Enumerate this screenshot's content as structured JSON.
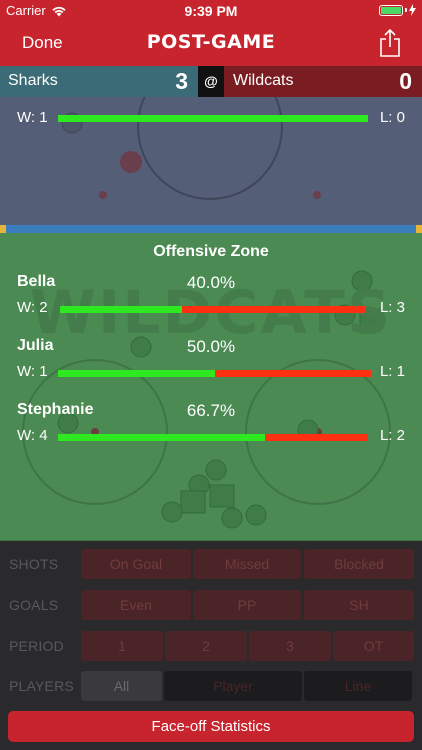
{
  "status": {
    "carrier": "Carrier",
    "time": "9:39 PM"
  },
  "nav": {
    "done": "Done",
    "title": "POST-GAME"
  },
  "score": {
    "home_team": "Sharks",
    "home_score": "3",
    "at": "@",
    "away_team": "Wildcats",
    "away_score": "0"
  },
  "neutral_row": {
    "win_label": "W: 1",
    "loss_label": "L: 0",
    "win_fraction": 1.0
  },
  "rink_watermark": "WILDCATS",
  "zone_title": "Offensive Zone",
  "players": [
    {
      "name": "Bella",
      "percent": "40.0%",
      "win_label": "W: 2",
      "loss_label": "L: 3",
      "win_fraction": 0.4
    },
    {
      "name": "Julia",
      "percent": "50.0%",
      "win_label": "W: 1",
      "loss_label": "L: 1",
      "win_fraction": 0.5
    },
    {
      "name": "Stephanie",
      "percent": "66.7%",
      "win_label": "W: 4",
      "loss_label": "L: 2",
      "win_fraction": 0.667
    }
  ],
  "filters": {
    "shots": {
      "label": "SHOTS",
      "options": [
        "On Goal",
        "Missed",
        "Blocked"
      ]
    },
    "goals": {
      "label": "GOALS",
      "options": [
        "Even",
        "PP",
        "SH"
      ]
    },
    "period": {
      "label": "PERIOD",
      "options": [
        "1",
        "2",
        "3",
        "OT"
      ]
    },
    "players": {
      "label": "PLAYERS",
      "options": [
        "All",
        "Player",
        "Line"
      ],
      "selected": "All"
    }
  },
  "faceoff_button": "Face-off Statistics",
  "colors": {
    "brand_red": "#c8242d",
    "win_green": "#2ee820",
    "loss_red": "#ff3012",
    "home_teal": "#3a6b76",
    "away_maroon": "#7a1d22"
  }
}
